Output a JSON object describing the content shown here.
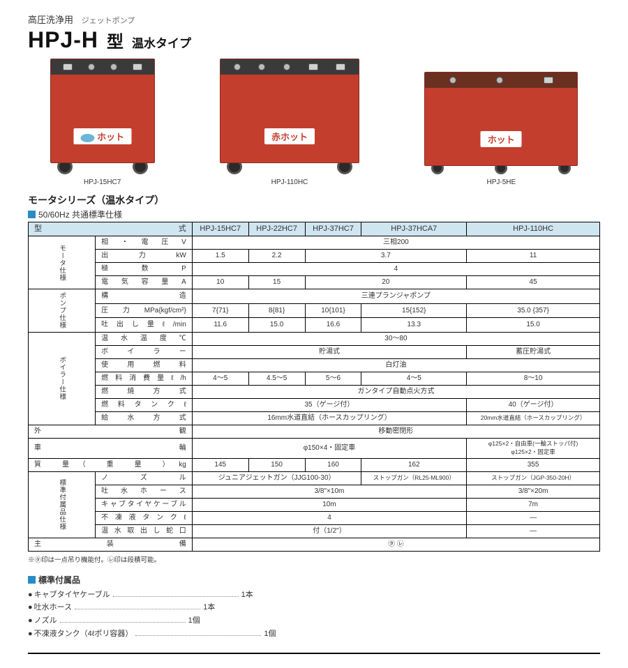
{
  "header": {
    "category": "高圧洗浄用",
    "category_sub": "ジェットポンプ",
    "title_main": "HPJ-H",
    "title_suffix": "型",
    "title_variant": "温水タイプ"
  },
  "products": {
    "p1": {
      "label": "HPJ-15HC7",
      "sticker": "ホット"
    },
    "p2": {
      "label": "HPJ-110HC",
      "sticker": "赤ホット"
    },
    "p3": {
      "label": "HPJ-5HE",
      "sticker": "ホット"
    }
  },
  "spec_section": {
    "title": "モータシリーズ（温水タイプ）",
    "sub": "50/60Hz 共通標準仕様"
  },
  "columns": {
    "model_label": "型　　　式",
    "c1": "HPJ-15HC7",
    "c2": "HPJ-22HC7",
    "c3": "HPJ-37HC7",
    "c4": "HPJ-37HCA7",
    "c5": "HPJ-110HC"
  },
  "groups": {
    "motor": "モータ仕様",
    "pump": "ポンプ仕様",
    "boiler": "ボイラー仕様",
    "accessory": "標準付属品仕様"
  },
  "rows": {
    "phase": {
      "label": "相 ・ 電 圧 V",
      "span5": "三相200"
    },
    "output": {
      "label": "出　力　kW",
      "c1": "1.5",
      "c2": "2.2",
      "c34": "3.7",
      "c5": "11"
    },
    "poles": {
      "label": "極　数　P",
      "span5": "4"
    },
    "amps": {
      "label": "電 気 容 量 A",
      "c1": "10",
      "c2": "15",
      "c34": "20",
      "c5": "45"
    },
    "structure": {
      "label": "構　　　造",
      "span5": "三連プランジャポンプ"
    },
    "pressure": {
      "label": "圧力MPa{kgf/cm²}",
      "c1": "7{71}",
      "c2": "8{81}",
      "c3": "10{101}",
      "c4": "15{152}",
      "c5": "35.0 {357}"
    },
    "flow": {
      "label": "吐出し量ℓ/min",
      "c1": "11.6",
      "c2": "15.0",
      "c3": "16.6",
      "c4": "13.3",
      "c5": "15.0"
    },
    "temp": {
      "label": "温 水 温 度 ℃",
      "span5": "30〜80"
    },
    "boiler_type": {
      "label": "ボ イ ラ ー",
      "c14": "貯湯式",
      "c5": "蓄圧貯湯式"
    },
    "fuel": {
      "label": "使 用 燃 料",
      "span5": "白灯油"
    },
    "fuel_cons": {
      "label": "燃料消費量ℓ/h",
      "c1": "4〜5",
      "c2": "4.5〜5",
      "c3": "5〜6",
      "c4": "4〜5",
      "c5": "8〜10"
    },
    "ignition": {
      "label": "燃 焼 方 式",
      "span5": "ガンタイプ自動点火方式"
    },
    "tank": {
      "label": "燃 料 タ ン ク ℓ",
      "c14": "35（ゲージ付）",
      "c5": "40（ゲージ付）"
    },
    "water": {
      "label": "給 水 方 式",
      "c14": "16mm水道直結（ホースカップリング）",
      "c5": "20mm水道直結（ホースカップリング）"
    },
    "exterior": {
      "label": "外　　　観",
      "span5": "移動密閉形"
    },
    "wheels": {
      "label": "車　　　輪",
      "c14": "φ150×4・固定車",
      "c5": "φ125×2・自由車(一輪ストッパ付)\nφ125×2・固定車"
    },
    "weight": {
      "label": "質 量（ 重 量 ）kg",
      "c1": "145",
      "c2": "150",
      "c3": "160",
      "c4": "162",
      "c5": "355"
    },
    "nozzle": {
      "label": "ノ　ズ　ル",
      "c13": "ジュニアジェットガン（JJG100-30）",
      "c4": "ストップガン（RL25-ML900）",
      "c5": "ストップガン（JGP-350-20H）"
    },
    "hose": {
      "label": "吐 水 ホ ー ス",
      "c14": "3/8\"×10m",
      "c5": "3/8\"×20m"
    },
    "cable": {
      "label": "キャブタイヤケーブル",
      "c14": "10m",
      "c5": "7m"
    },
    "antifreeze": {
      "label": "不凍液タンクℓ",
      "c14": "4",
      "c5": "—"
    },
    "hot_outlet": {
      "label": "温水取出し蛇口",
      "c14": "付（1/2\"）",
      "c5": "—"
    },
    "main_equip": {
      "label": "主　装　備",
      "span5": "㋟ ㋹"
    }
  },
  "note": "※㋟印は一点吊り機能付。㋹印は段積可能。",
  "accessories": {
    "head": "標準付属品",
    "items": [
      {
        "name": "キャブタイヤケーブル",
        "qty": "1本"
      },
      {
        "name": "吐水ホース",
        "qty": "1本"
      },
      {
        "name": "ノズル",
        "qty": "1個"
      },
      {
        "name": "不凍液タンク（4ℓポリ容器）",
        "qty": "1個"
      }
    ]
  }
}
